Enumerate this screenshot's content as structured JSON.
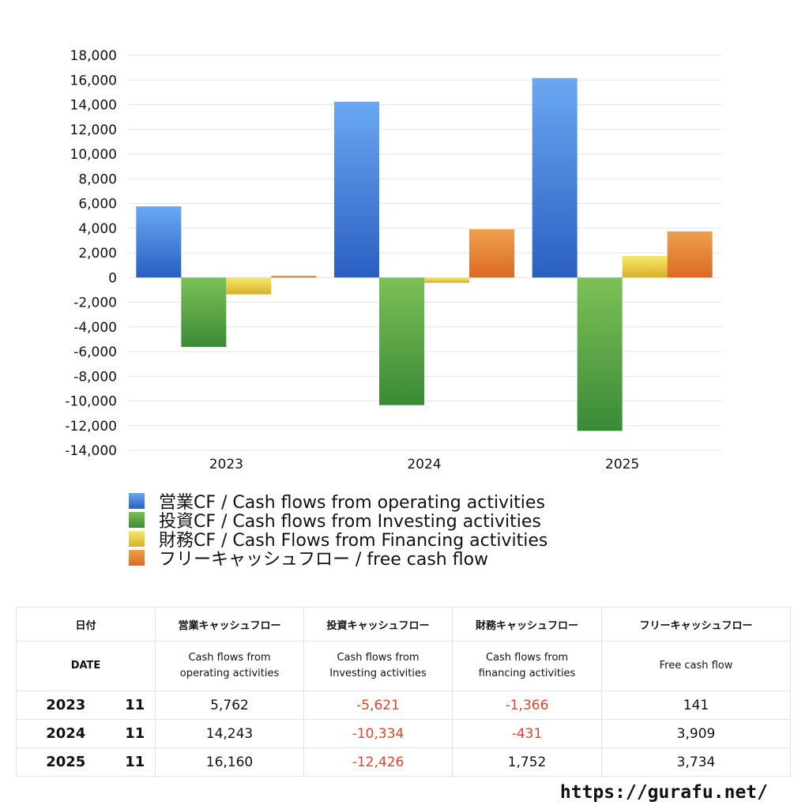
{
  "chart_data": {
    "type": "bar",
    "categories": [
      "2023",
      "2024",
      "2025"
    ],
    "series": [
      {
        "name": "営業CF / Cash flows from operating activities",
        "values": [
          5762,
          14243,
          16160
        ],
        "color": "#2f6fd6"
      },
      {
        "name": "投資CF / Cash flows from Investing activities",
        "values": [
          -5621,
          -10334,
          -12426
        ],
        "color": "#3f973a"
      },
      {
        "name": "財務CF / Cash Flows from Financing activities",
        "values": [
          -1366,
          -431,
          1752
        ],
        "color": "#e6c237"
      },
      {
        "name": "フリーキャッシュフロー / free cash flow",
        "values": [
          141,
          3909,
          3734
        ],
        "color": "#e07c2a"
      }
    ],
    "ylim": [
      -14000,
      18000
    ],
    "yticks": [
      18000,
      16000,
      14000,
      12000,
      10000,
      8000,
      6000,
      4000,
      2000,
      0,
      -2000,
      -4000,
      -6000,
      -8000,
      -10000,
      -12000,
      -14000
    ],
    "ytick_labels": [
      "18,000",
      "16,000",
      "14,000",
      "12,000",
      "10,000",
      "8,000",
      "6,000",
      "4,000",
      "2,000",
      "0",
      "-2,000",
      "-4,000",
      "-6,000",
      "-8,000",
      "-10,000",
      "-12,000",
      "-14,000"
    ],
    "grid": true,
    "legend_position": "bottom",
    "title": "",
    "xlabel": "",
    "ylabel": ""
  },
  "legend": {
    "items": [
      {
        "label": "営業CF / Cash flows from operating activities",
        "color": "#2f6fd6"
      },
      {
        "label": "投資CF / Cash flows from Investing activities",
        "color": "#3f973a"
      },
      {
        "label": "財務CF / Cash Flows from Financing activities",
        "color": "#e6c237"
      },
      {
        "label": "フリーキャッシュフロー / free cash flow",
        "color": "#e07c2a"
      }
    ]
  },
  "table": {
    "header_jp": {
      "date": "日付",
      "operating": "営業キャッシュフロー",
      "investing": "投資キャッシュフロー",
      "financing": "財務キャッシュフロー",
      "free": "フリーキャッシュフロー"
    },
    "header_en": {
      "date": "DATE",
      "operating_1": "Cash flows from",
      "operating_2": "operating activities",
      "investing_1": "Cash flows from",
      "investing_2": "Investing activities",
      "financing_1": "Cash flows from",
      "financing_2": "financing activities",
      "free": "Free cash flow"
    },
    "rows": [
      {
        "year": "2023",
        "month": "11",
        "operating": "5,762",
        "investing": "-5,621",
        "financing": "-1,366",
        "free": "141"
      },
      {
        "year": "2024",
        "month": "11",
        "operating": "14,243",
        "investing": "-10,334",
        "financing": "-431",
        "free": "3,909"
      },
      {
        "year": "2025",
        "month": "11",
        "operating": "16,160",
        "investing": "-12,426",
        "financing": "1,752",
        "free": "3,734"
      }
    ],
    "negative_color": "#e0442b"
  },
  "footer": {
    "url": "https://gurafu.net/"
  }
}
